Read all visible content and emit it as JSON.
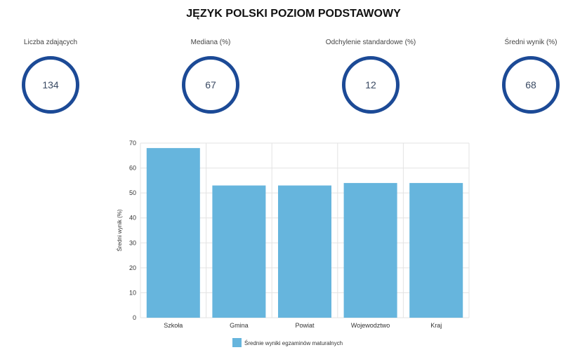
{
  "title": "JĘZYK POLSKI POZIOM PODSTAWOWY",
  "stats": [
    {
      "label": "Liczba zdających",
      "value": "134"
    },
    {
      "label": "Mediana (%)",
      "value": "67"
    },
    {
      "label": "Odchylenie standardowe (%)",
      "value": "12"
    },
    {
      "label": "Średni wynik (%)",
      "value": "68"
    }
  ],
  "colors": {
    "ring": "#1c4a96",
    "bar": "#66b5dd"
  },
  "chart_data": {
    "type": "bar",
    "categories": [
      "Szkoła",
      "Gmina",
      "Powiat",
      "Wojewodztwo",
      "Kraj"
    ],
    "series": [
      {
        "name": "Średnie wyniki egzaminów maturalnych",
        "values": [
          68,
          53,
          53,
          54,
          54
        ]
      }
    ],
    "ylabel": "Średni wynik (%)",
    "xlabel": "",
    "ylim": [
      0,
      70
    ],
    "yticks": [
      0,
      10,
      20,
      30,
      40,
      50,
      60,
      70
    ],
    "grid": true,
    "legend": "bottom"
  }
}
